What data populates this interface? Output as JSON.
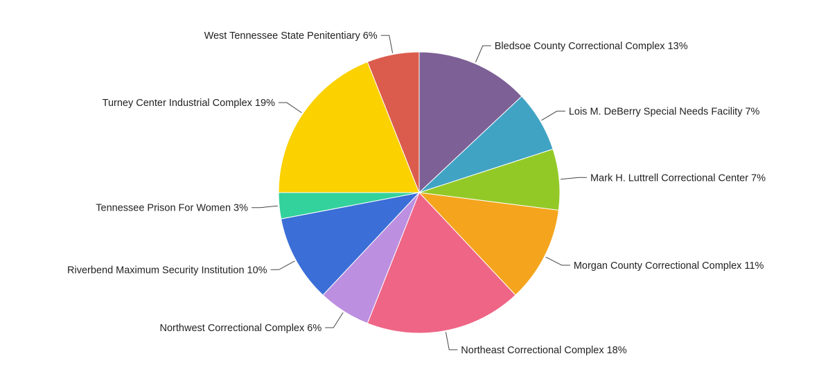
{
  "chart_data": {
    "type": "pie",
    "title": "",
    "label_format": "{name} {pct}%",
    "slices": [
      {
        "name": "Bledsoe County Correctional Complex",
        "value": 13,
        "color": "#7d6095"
      },
      {
        "name": "Lois M. DeBerry Special Needs Facility",
        "value": 7,
        "color": "#40a3c4"
      },
      {
        "name": "Mark H. Luttrell Correctional Center",
        "value": 7,
        "color": "#93c927"
      },
      {
        "name": "Morgan County Correctional Complex",
        "value": 11,
        "color": "#f4a51d"
      },
      {
        "name": "Northeast Correctional Complex",
        "value": 18,
        "color": "#ef6586"
      },
      {
        "name": "Northwest Correctional Complex",
        "value": 6,
        "color": "#bc8fe0"
      },
      {
        "name": "Riverbend Maximum Security Institution",
        "value": 10,
        "color": "#3b6ed7"
      },
      {
        "name": "Tennessee Prison For Women",
        "value": 3,
        "color": "#33d19c"
      },
      {
        "name": "Turney Center Industrial Complex",
        "value": 19,
        "color": "#fbd100"
      },
      {
        "name": "West Tennessee State Penitentiary",
        "value": 6,
        "color": "#db5c4d"
      }
    ]
  }
}
